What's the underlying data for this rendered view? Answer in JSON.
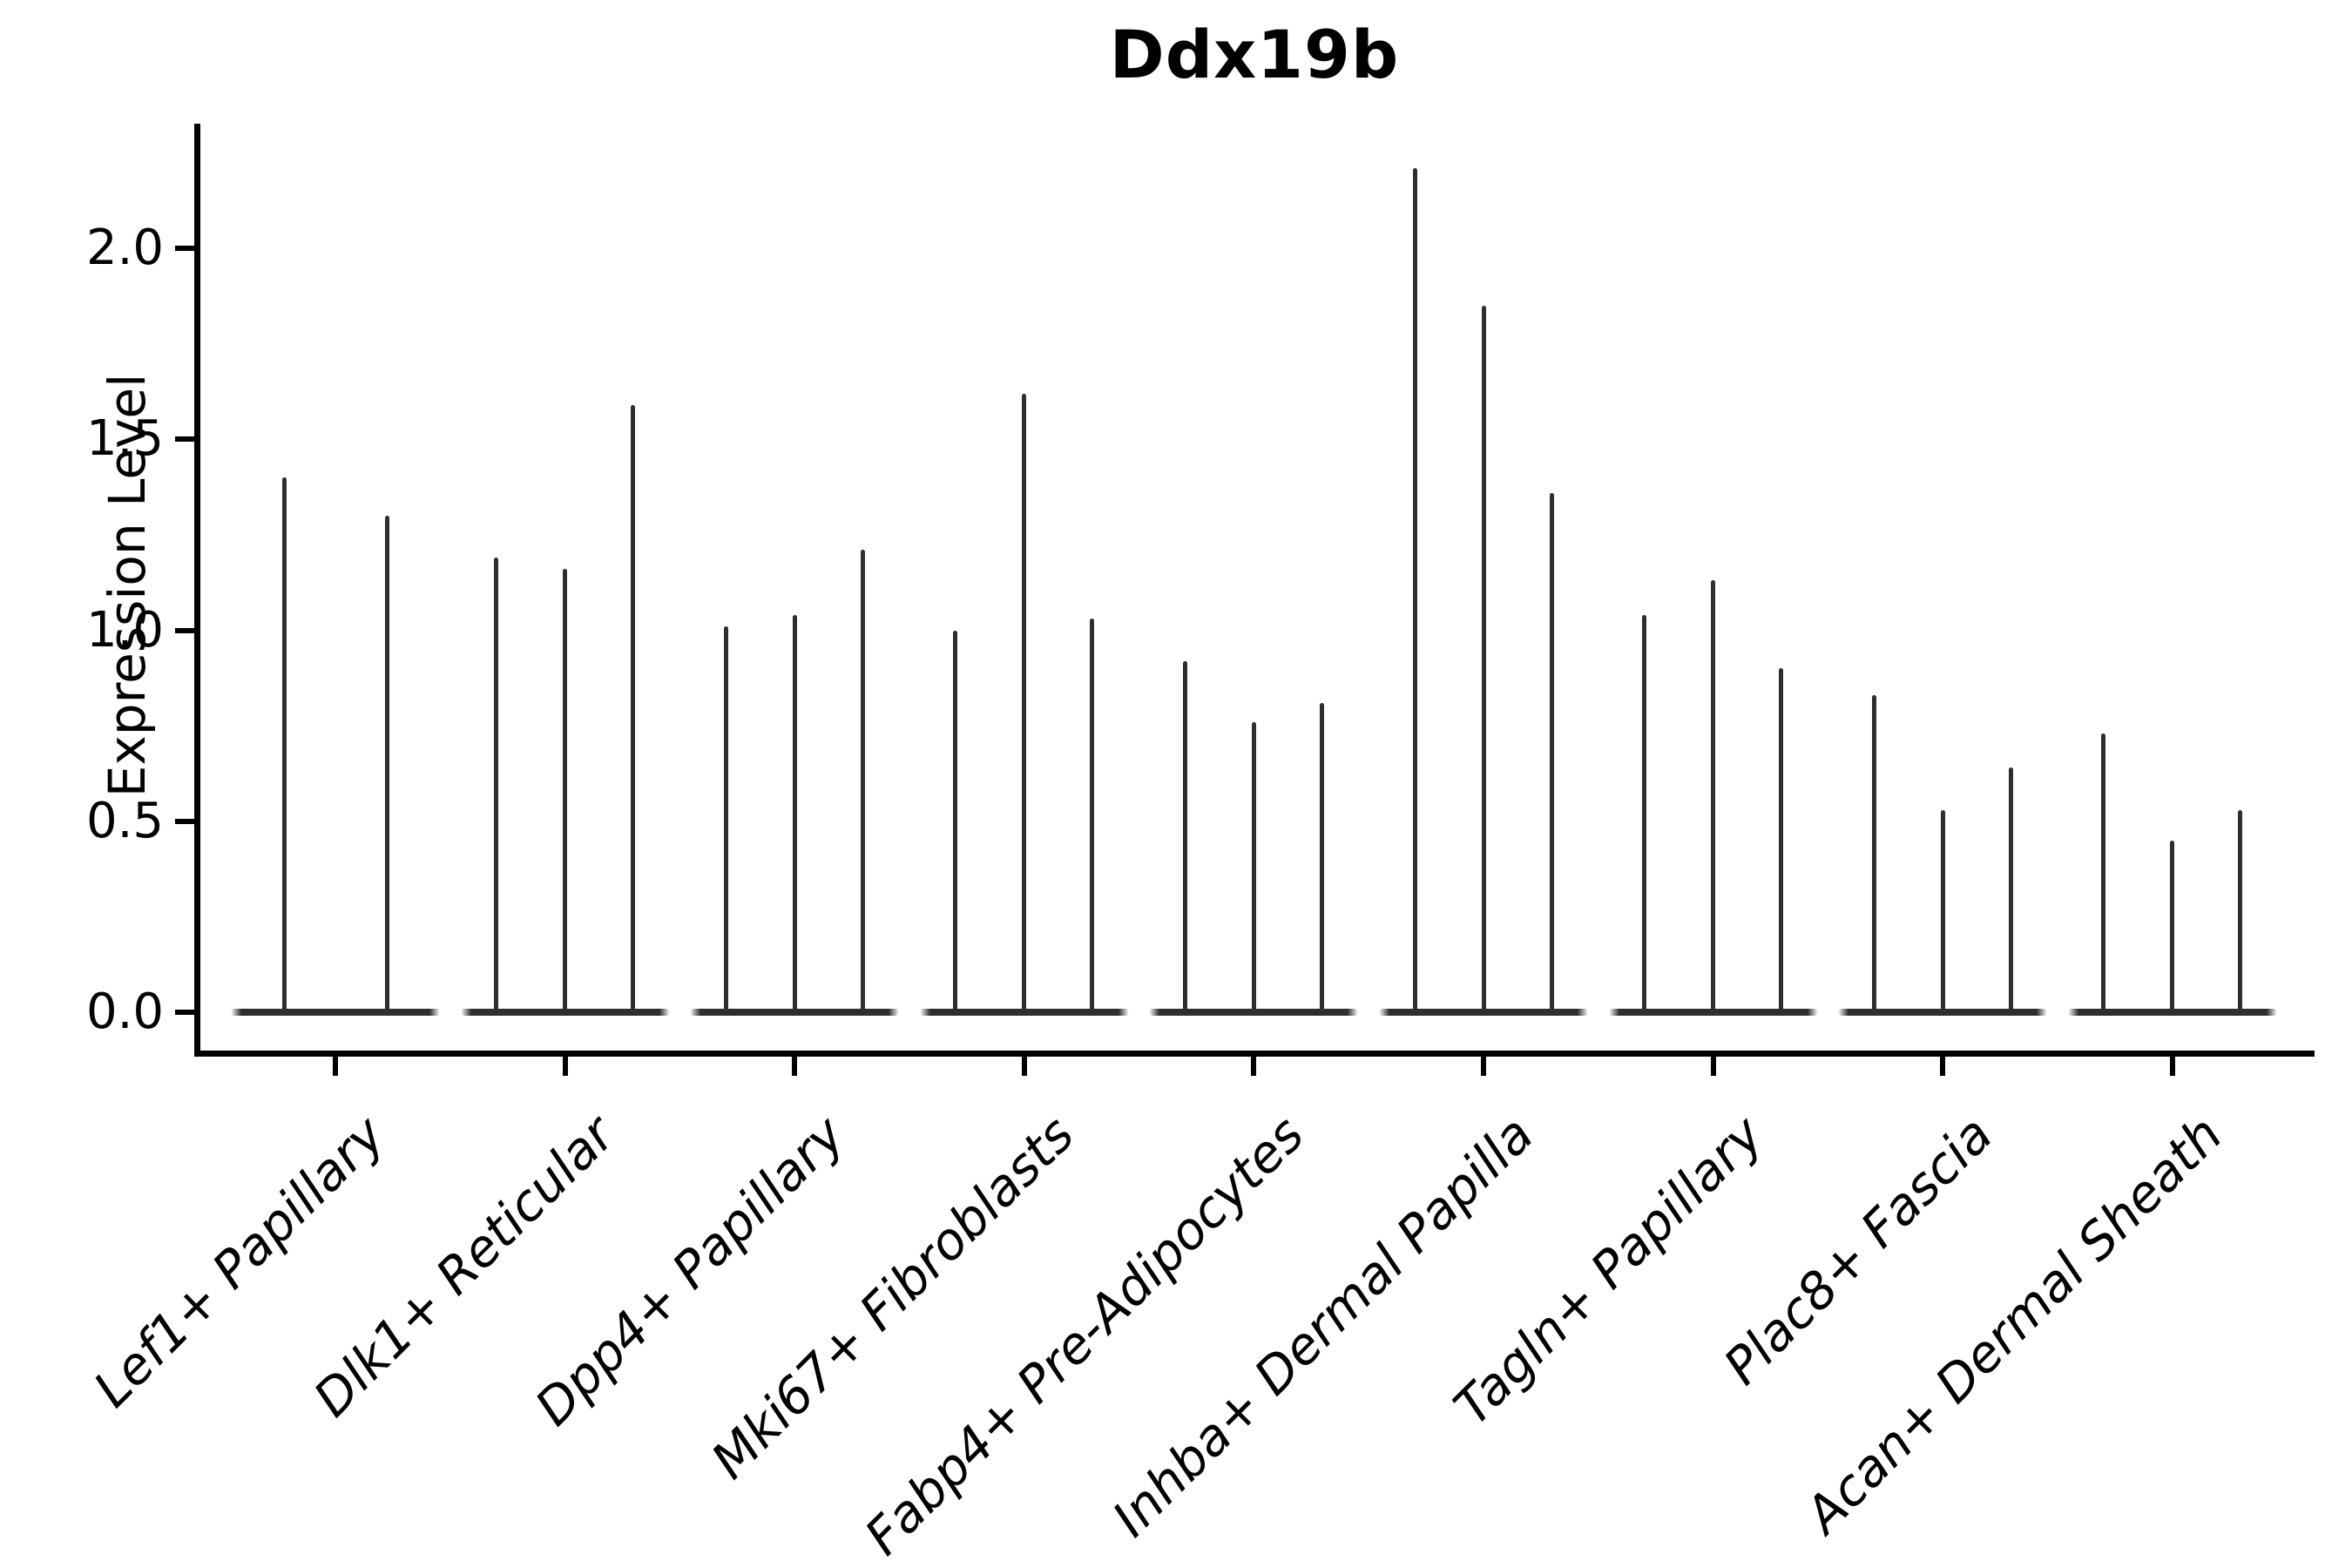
{
  "chart_data": {
    "type": "violin",
    "title": "Ddx19b",
    "ylabel": "Expression Level",
    "xlabel": "",
    "ytick_labels": [
      "0.0",
      "0.5",
      "1.0",
      "1.5",
      "2.0"
    ],
    "yticks": [
      0.0,
      0.5,
      1.0,
      1.5,
      2.0
    ],
    "ylim": [
      -0.12,
      2.33
    ],
    "grid": false,
    "legend": "none",
    "categories": [
      "Lef1+ Papillary",
      "Dlk1+ Reticular",
      "Dpp4+ Papillary",
      "Mki67+ Fibroblasts",
      "Fabp4+ Pre-Adipocytes",
      "Inhba+ Dermal Papilla",
      "Tagln+ Papillary",
      "Plac8+ Fascia",
      "Acan+ Dermal Sheath"
    ],
    "series": [
      {
        "name": "Lef1+ Papillary",
        "violin_maxima": [
          1.4,
          1.3
        ]
      },
      {
        "name": "Dlk1+ Reticular",
        "violin_maxima": [
          1.19,
          1.16,
          1.59
        ]
      },
      {
        "name": "Dpp4+ Papillary",
        "violin_maxima": [
          1.01,
          1.04,
          1.21
        ]
      },
      {
        "name": "Mki67+ Fibroblasts",
        "violin_maxima": [
          1.0,
          1.62,
          1.03
        ]
      },
      {
        "name": "Fabp4+ Pre-Adipocytes",
        "violin_maxima": [
          0.92,
          0.76,
          0.81
        ]
      },
      {
        "name": "Inhba+ Dermal Papilla",
        "violin_maxima": [
          2.21,
          1.85,
          1.36
        ]
      },
      {
        "name": "Tagln+ Papillary",
        "violin_maxima": [
          1.04,
          1.13,
          0.9
        ]
      },
      {
        "name": "Plac8+ Fascia",
        "violin_maxima": [
          0.83,
          0.53,
          0.64
        ]
      },
      {
        "name": "Acan+ Dermal Sheath",
        "violin_maxima": [
          0.73,
          0.45,
          0.53
        ]
      }
    ],
    "violin_baseline_value": 0.0
  },
  "colors": {
    "violin": "#2e2e2e",
    "axis": "#000000",
    "text": "#000000",
    "background": "#ffffff"
  }
}
